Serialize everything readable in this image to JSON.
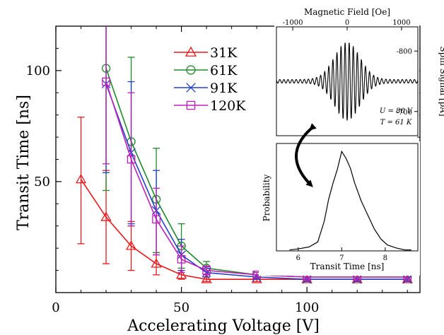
{
  "chart_data": [
    {
      "type": "line",
      "title": "",
      "xlabel": "Accelerating Voltage [V]",
      "ylabel": "Transit Time [ns]",
      "xlim": [
        0,
        145
      ],
      "ylim": [
        0,
        120
      ],
      "x_ticks": [
        "0",
        "50",
        "100"
      ],
      "y_ticks": [
        "50",
        "100"
      ],
      "grid": false,
      "legend_position": "top-center",
      "series": [
        {
          "name": "31K",
          "color": "#e8191c",
          "marker": "triangle",
          "x": [
            10,
            20,
            30,
            40,
            50,
            60,
            80,
            100,
            120,
            140
          ],
          "y": [
            51,
            34,
            21,
            13,
            8,
            6,
            6,
            6,
            6,
            6
          ],
          "err_low": [
            29,
            21,
            11,
            5,
            2,
            1,
            1,
            1,
            1,
            1
          ],
          "err_high": [
            28,
            21,
            11,
            5,
            2,
            1,
            1,
            1,
            1,
            1
          ]
        },
        {
          "name": "61K",
          "color": "#1f8a2a",
          "marker": "circle",
          "x": [
            20,
            30,
            40,
            50,
            60,
            80,
            100,
            120,
            140
          ],
          "y": [
            101,
            68,
            42,
            21,
            11,
            8,
            7,
            7,
            7
          ],
          "err_low": [
            55,
            38,
            24,
            10,
            3,
            1,
            1,
            1,
            1
          ],
          "err_high": [
            30,
            38,
            23,
            10,
            3,
            1,
            1,
            1,
            1
          ]
        },
        {
          "name": "91K",
          "color": "#2340c8",
          "marker": "x",
          "x": [
            20,
            30,
            40,
            50,
            60,
            80,
            100,
            120,
            140
          ],
          "y": [
            94,
            63,
            37,
            17,
            9,
            7,
            6,
            6,
            6
          ],
          "err_low": [
            40,
            32,
            20,
            7,
            2,
            1,
            1,
            1,
            1
          ],
          "err_high": [
            35,
            32,
            18,
            7,
            2,
            1,
            1,
            1,
            1
          ]
        },
        {
          "name": "120K",
          "color": "#c020b8",
          "marker": "square",
          "x": [
            20,
            30,
            40,
            50,
            60,
            80,
            100,
            120,
            140
          ],
          "y": [
            95,
            60,
            33,
            15,
            10,
            8,
            7,
            7,
            7
          ],
          "err_low": [
            37,
            30,
            16,
            6,
            2,
            1,
            1,
            1,
            1
          ],
          "err_high": [
            40,
            30,
            14,
            6,
            2,
            1,
            1,
            1,
            1
          ]
        }
      ]
    },
    {
      "type": "line",
      "title": "Magnetic Field [Oe]",
      "xlabel": "Magnetic Field [Oe]",
      "ylabel": "Spin Signal [pA]",
      "xlim": [
        -1300,
        1300
      ],
      "ylim": [
        -660,
        -840
      ],
      "x_ticks": [
        "-1000",
        "0",
        "1000"
      ],
      "y_ticks": [
        "-800",
        "-700"
      ],
      "annotations": [
        "U = 80 V",
        "T = 61 K"
      ],
      "series": [
        {
          "name": "",
          "color": "#000000",
          "description_type": "oscillation",
          "center": 0,
          "baseline": -750,
          "amplitude": 62,
          "envelope_width_oe": 330,
          "period_oe": 75
        }
      ]
    },
    {
      "type": "line",
      "title": "",
      "xlabel": "Transit Time [ns]",
      "ylabel": "Probability",
      "xlim": [
        5.5,
        8.75
      ],
      "ylim": [
        0,
        1.08
      ],
      "x_ticks": [
        "6",
        "7",
        "8"
      ],
      "series": [
        {
          "name": "",
          "color": "#000000",
          "x": [
            5.8,
            6.0,
            6.25,
            6.45,
            6.6,
            6.7,
            6.8,
            6.9,
            7.0,
            7.1,
            7.2,
            7.3,
            7.45,
            7.6,
            7.75,
            7.9,
            8.05,
            8.25,
            8.45,
            8.6
          ],
          "y": [
            0.01,
            0.02,
            0.04,
            0.09,
            0.3,
            0.52,
            0.68,
            0.82,
            1.0,
            0.93,
            0.83,
            0.68,
            0.5,
            0.36,
            0.22,
            0.12,
            0.06,
            0.03,
            0.01,
            0.01
          ]
        }
      ]
    }
  ]
}
